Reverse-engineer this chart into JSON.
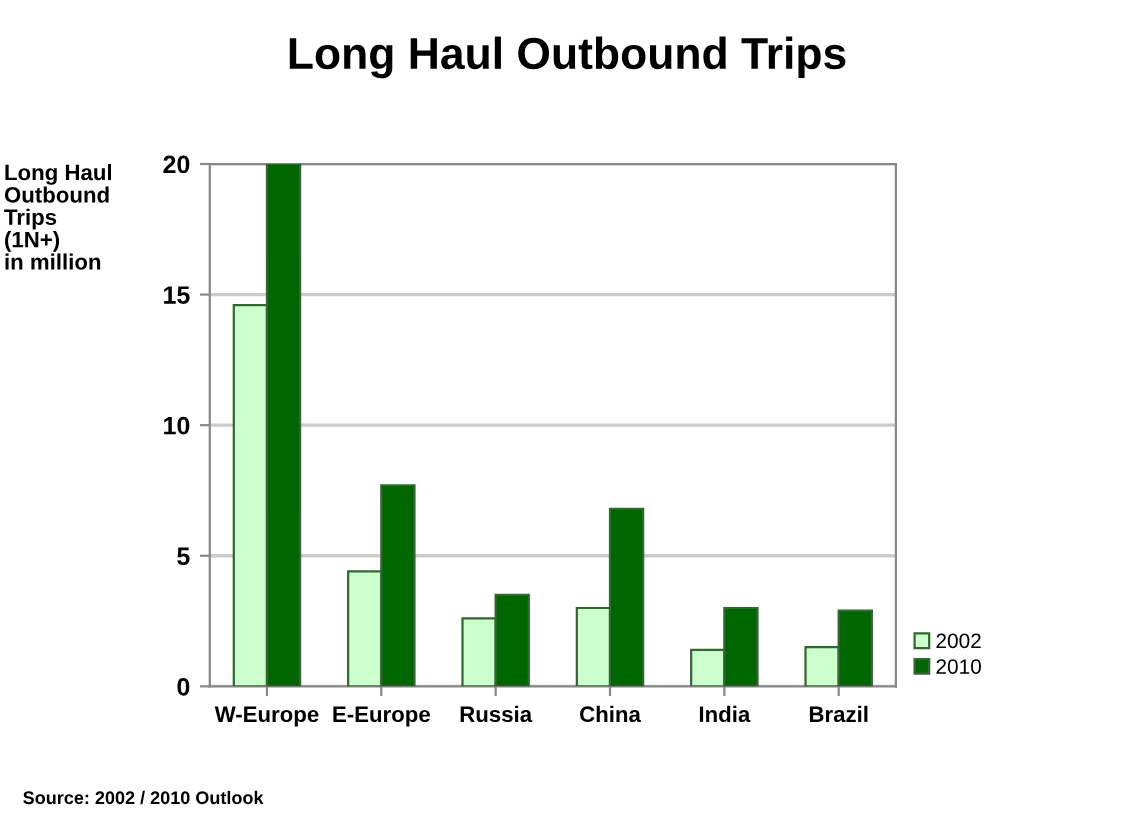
{
  "chart_data": {
    "type": "bar",
    "title": "Long Haul Outbound Trips",
    "ylabel": "Long Haul\nOutbound\nTrips\n(1N+)\nin million",
    "categories": [
      "W-Europe",
      "E-Europe",
      "Russia",
      "China",
      "India",
      "Brazil"
    ],
    "series": [
      {
        "name": "2002",
        "color": "#ccffcc",
        "values": [
          14.6,
          4.4,
          2.6,
          3.0,
          1.4,
          1.5
        ]
      },
      {
        "name": "2010",
        "color": "#006600",
        "values": [
          20.0,
          7.7,
          3.5,
          6.8,
          3.0,
          2.9
        ]
      }
    ],
    "ylim": [
      0,
      20
    ],
    "yticks": [
      0,
      5,
      10,
      15,
      20
    ],
    "grid": "y",
    "legend": "bottom right",
    "annotations": [
      "Source: 2002 / 2010 Outlook"
    ]
  }
}
